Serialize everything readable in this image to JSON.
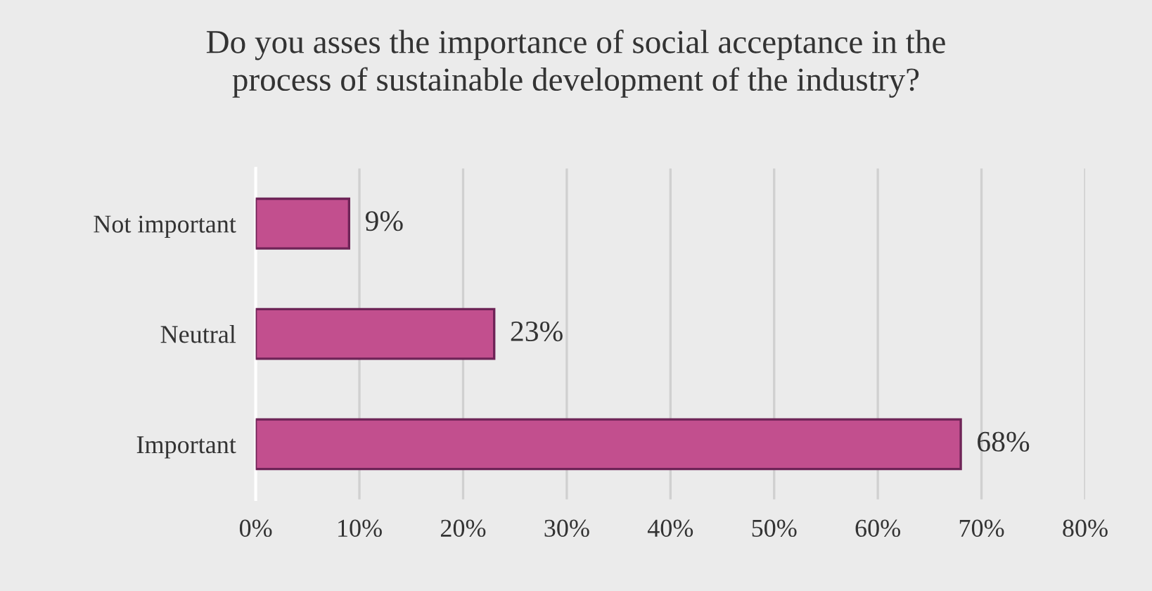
{
  "chart_data": {
    "type": "bar",
    "orientation": "horizontal",
    "title": "Do you asses the importance of social acceptance in the\nprocess of sustainable development of the industry?",
    "categories": [
      "Not important",
      "Neutral",
      "Important"
    ],
    "values": [
      9,
      23,
      68
    ],
    "color": "#c24f8e",
    "value_labels": [
      "9%",
      "23%",
      "68%"
    ],
    "xlim": [
      0,
      80
    ],
    "xticks": [
      {
        "value": 0,
        "label": "0%"
      },
      {
        "value": 10,
        "label": "10%"
      },
      {
        "value": 20,
        "label": "20%"
      },
      {
        "value": 30,
        "label": "30%"
      },
      {
        "value": 40,
        "label": "40%"
      },
      {
        "value": 50,
        "label": "50%"
      },
      {
        "value": 60,
        "label": "60%"
      },
      {
        "value": 70,
        "label": "70%"
      },
      {
        "value": 80,
        "label": "80%"
      }
    ],
    "grid": "x",
    "legend": false
  }
}
